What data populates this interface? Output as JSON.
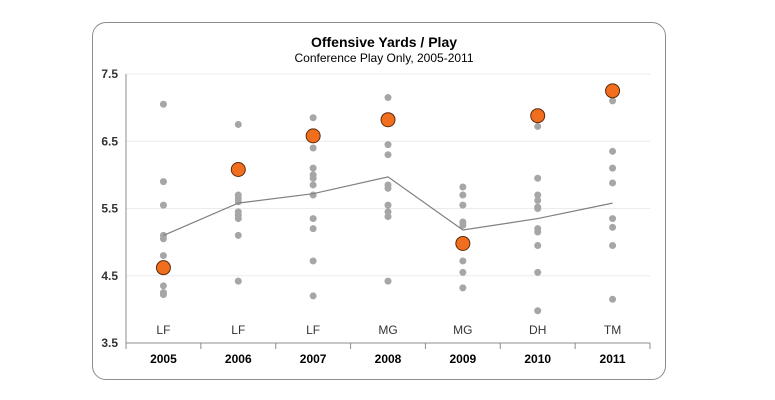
{
  "chart_data": {
    "type": "scatter",
    "title": "Offensive Yards / Play",
    "subtitle": "Conference Play Only, 2005-2011",
    "categories": [
      "2005",
      "2006",
      "2007",
      "2008",
      "2009",
      "2010",
      "2011"
    ],
    "category_labels": [
      "LF",
      "LF",
      "LF",
      "MG",
      "MG",
      "DH",
      "TM"
    ],
    "ylim": [
      3.5,
      7.5
    ],
    "yticks": [
      "3.5",
      "4.5",
      "5.5",
      "6.5",
      "7.5"
    ],
    "grid": true,
    "series": [
      {
        "color": "#a6a6a6",
        "points": [
          [
            7.05,
            5.9,
            5.55,
            5.1,
            5.05,
            4.8,
            4.35,
            4.25,
            4.22
          ],
          [
            6.75,
            5.7,
            5.65,
            5.6,
            5.45,
            5.4,
            5.35,
            5.1,
            4.42
          ],
          [
            6.85,
            6.4,
            6.1,
            6.0,
            5.95,
            5.85,
            5.7,
            5.35,
            5.2,
            4.72,
            4.2
          ],
          [
            7.15,
            6.45,
            6.3,
            5.85,
            5.8,
            5.55,
            5.45,
            5.38,
            4.42
          ],
          [
            5.82,
            5.7,
            5.55,
            5.3,
            5.25,
            4.72,
            4.55,
            4.32
          ],
          [
            6.72,
            5.95,
            5.7,
            5.62,
            5.52,
            5.5,
            5.2,
            5.15,
            4.95,
            4.55,
            3.98
          ],
          [
            7.1,
            6.35,
            6.1,
            5.88,
            5.35,
            5.22,
            4.95,
            4.15
          ]
        ]
      },
      {
        "color": "#808080",
        "values": [
          5.1,
          5.58,
          5.72,
          5.97,
          5.18,
          5.35,
          5.58
        ]
      },
      {
        "color": "#f26e1f",
        "values": [
          4.62,
          6.08,
          6.58,
          6.82,
          4.98,
          6.88,
          7.25
        ]
      }
    ]
  }
}
